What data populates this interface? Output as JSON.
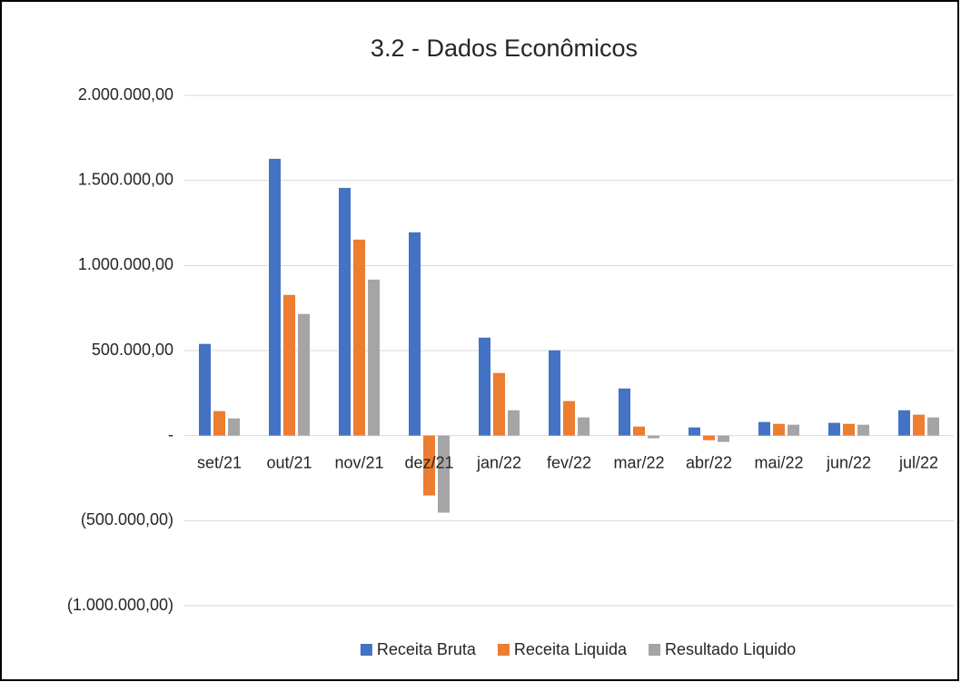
{
  "chart_data": {
    "type": "bar",
    "title": "3.2 - Dados Econômicos",
    "categories": [
      "set/21",
      "out/21",
      "nov/21",
      "dez/21",
      "jan/22",
      "fev/22",
      "mar/22",
      "abr/22",
      "mai/22",
      "jun/22",
      "jul/22"
    ],
    "series": [
      {
        "name": "Receita Bruta",
        "color": "#4472c4",
        "values": [
          539000,
          1627000,
          1456000,
          1195000,
          576000,
          501000,
          277000,
          48000,
          80000,
          75000,
          149000
        ]
      },
      {
        "name": "Receita Liquida",
        "color": "#ed7d31",
        "values": [
          144000,
          827000,
          1152000,
          -352000,
          368000,
          203000,
          53000,
          -27000,
          69000,
          69000,
          123000
        ]
      },
      {
        "name": "Resultado Liquido",
        "color": "#a5a5a5",
        "values": [
          101000,
          715000,
          917000,
          -453000,
          149000,
          107000,
          -16000,
          -37000,
          64000,
          64000,
          107000
        ]
      }
    ],
    "ylim": [
      -1000000,
      2000000
    ],
    "yticks": [
      {
        "value": -1000000,
        "label": "(1.000.000,00)"
      },
      {
        "value": -500000,
        "label": "(500.000,00)"
      },
      {
        "value": 0,
        "label": "-"
      },
      {
        "value": 500000,
        "label": "500.000,00"
      },
      {
        "value": 1000000,
        "label": "1.000.000,00"
      },
      {
        "value": 1500000,
        "label": "1.500.000,00"
      },
      {
        "value": 2000000,
        "label": "2.000.000,00"
      }
    ],
    "grid": true,
    "legend": "bottom"
  }
}
